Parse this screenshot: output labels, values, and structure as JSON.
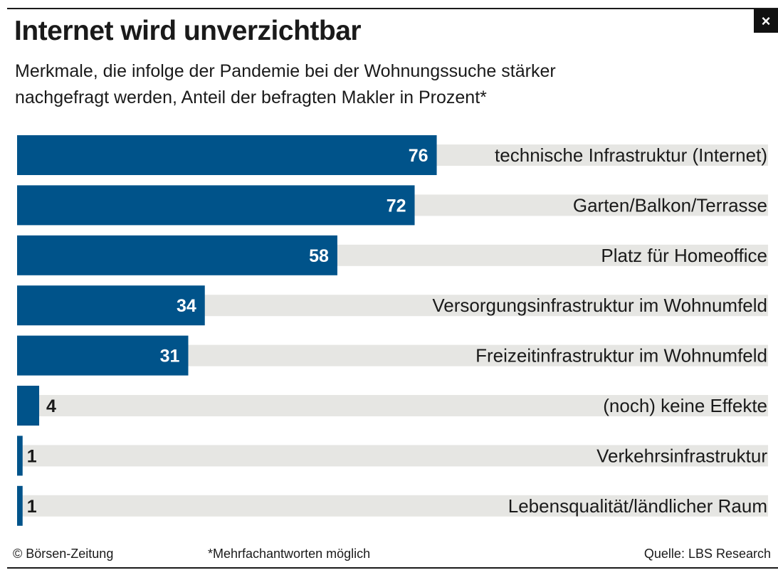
{
  "header": {
    "title": "Internet wird unverzichtbar",
    "subtitle_line1": "Merkmale, die infolge der Pandemie bei der Wohnungssuche stärker",
    "subtitle_line2": "nachgefragt werden, Anteil der befragten Makler in Prozent*",
    "close_label": "×"
  },
  "chart_data": {
    "type": "bar",
    "orientation": "horizontal",
    "categories": [
      "technische Infrastruktur (Internet)",
      "Garten/Balkon/Terrasse",
      "Platz für Homeoffice",
      "Versorgungsinfrastruktur im Wohnumfeld",
      "Freizeitinfrastruktur im Wohnumfeld",
      "(noch) keine Effekte",
      "Verkehrsinfrastruktur",
      "Lebensqualität/ländlicher Raum"
    ],
    "values": [
      76,
      72,
      58,
      34,
      31,
      4,
      1,
      1
    ],
    "value_labels": [
      "76",
      "72",
      "58",
      "34",
      "31",
      "4",
      "1",
      "1"
    ],
    "xlim": [
      0,
      136
    ],
    "grid": false,
    "legend": "none",
    "colors": {
      "bar": "#00538a",
      "track": "#e6e6e3"
    }
  },
  "footer": {
    "copyright": "© Börsen-Zeitung",
    "note": "*Mehrfachantworten möglich",
    "source": "Quelle: LBS Research"
  }
}
